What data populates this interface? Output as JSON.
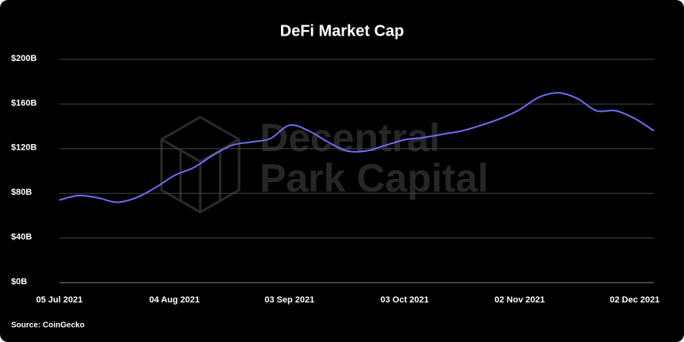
{
  "chart_data": {
    "type": "line",
    "title": "DeFi Market Cap",
    "watermark": [
      "Decentral",
      "Park Capital"
    ],
    "source": "Source: CoinGecko",
    "categories": [
      "05 Jul 2021",
      null,
      null,
      null,
      null,
      null,
      "04 Aug 2021",
      null,
      null,
      null,
      null,
      null,
      "03 Sep 2021",
      null,
      null,
      null,
      null,
      null,
      "03 Oct 2021",
      null,
      null,
      null,
      null,
      null,
      "02 Nov 2021",
      null,
      null,
      null,
      null,
      null,
      "02 Dec 2021",
      null
    ],
    "series": [
      {
        "name": "DeFi Market Cap",
        "color": "#6e6cf2",
        "values": [
          74,
          78,
          76,
          72,
          76,
          85,
          96,
          103,
          114,
          123,
          126,
          129,
          141,
          136,
          126,
          118,
          118,
          123,
          128,
          130,
          133,
          136,
          141,
          147,
          155,
          166,
          170,
          165,
          154,
          154,
          147,
          136
        ]
      }
    ],
    "ylim": [
      0,
      200
    ],
    "yticks": [
      {
        "value": 0,
        "label": "$0B"
      },
      {
        "value": 40,
        "label": "$40B"
      },
      {
        "value": 80,
        "label": "$80B"
      },
      {
        "value": 120,
        "label": "$120B"
      },
      {
        "value": 160,
        "label": "$160B"
      },
      {
        "value": 200,
        "label": "$200B"
      }
    ],
    "grid": true
  }
}
